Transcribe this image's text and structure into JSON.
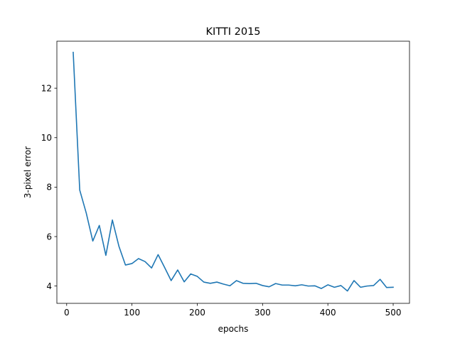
{
  "chart_data": {
    "type": "line",
    "title": "KITTI 2015",
    "xlabel": "epochs",
    "ylabel": "3-pixel error",
    "xlim": [
      -15,
      525
    ],
    "ylim": [
      3.3,
      13.9
    ],
    "xticks": [
      0,
      100,
      200,
      300,
      400,
      500
    ],
    "yticks": [
      4,
      6,
      8,
      10,
      12
    ],
    "grid": false,
    "legend": "none",
    "series": [
      {
        "color": "#1f77b4",
        "x": [
          10,
          20,
          30,
          40,
          50,
          60,
          70,
          80,
          90,
          100,
          110,
          120,
          130,
          140,
          150,
          160,
          170,
          180,
          190,
          200,
          210,
          220,
          230,
          240,
          250,
          260,
          270,
          280,
          290,
          300,
          310,
          320,
          330,
          340,
          350,
          360,
          370,
          380,
          390,
          400,
          410,
          420,
          430,
          440,
          450,
          460,
          470,
          480,
          490,
          500
        ],
        "y": [
          13.45,
          7.88,
          6.95,
          5.82,
          6.45,
          5.24,
          6.67,
          5.61,
          4.85,
          4.91,
          5.11,
          4.99,
          4.73,
          5.27,
          4.75,
          4.22,
          4.65,
          4.17,
          4.49,
          4.39,
          4.16,
          4.11,
          4.16,
          4.08,
          4.01,
          4.22,
          4.11,
          4.1,
          4.11,
          4.02,
          3.97,
          4.1,
          4.04,
          4.04,
          4.01,
          4.05,
          4.0,
          4.01,
          3.9,
          4.05,
          3.95,
          4.02,
          3.8,
          4.22,
          3.95,
          4.0,
          4.02,
          4.27,
          3.94,
          3.95
        ]
      }
    ]
  }
}
